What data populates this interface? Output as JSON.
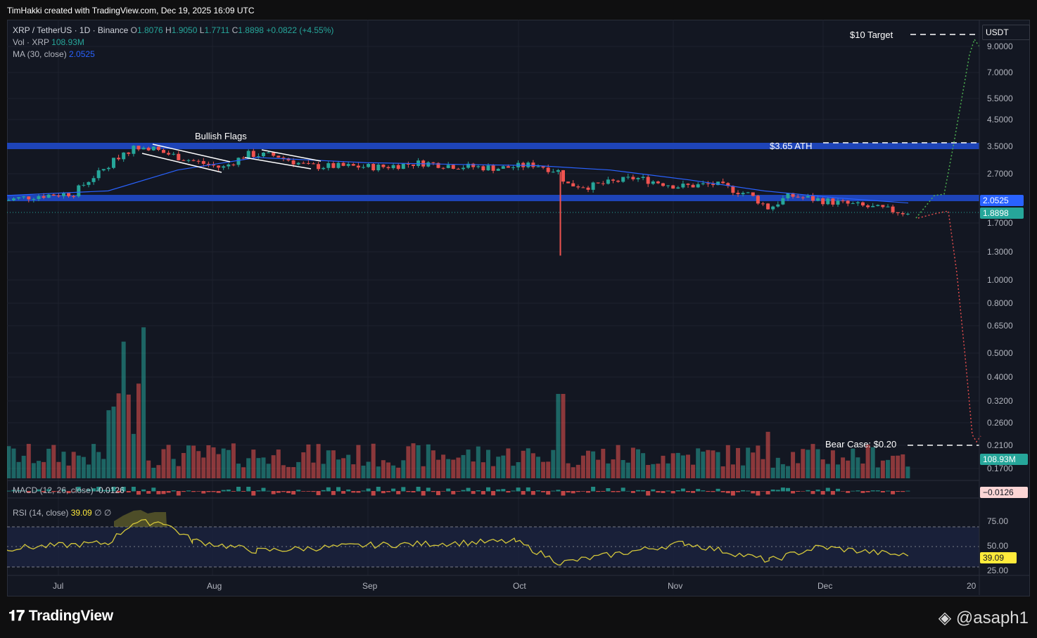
{
  "header": {
    "created_by": "TimHakki created with TradingView.com, Dec 19, 2025 16:09 UTC"
  },
  "legend": {
    "symbol": "XRP / TetherUS · 1D · Binance",
    "o_label": "O",
    "o": "1.8076",
    "h_label": "H",
    "h": "1.9050",
    "l_label": "L",
    "l": "1.7711",
    "c_label": "C",
    "c": "1.8898",
    "change": "+0.0822 (+4.55%)",
    "vol_label": "Vol · XRP",
    "vol": "108.93M",
    "ma_label": "MA (30, close)",
    "ma": "2.0525",
    "macd_label": "MACD (12, 26, close)",
    "macd": "-0.0126",
    "rsi_label": "RSI (14, close)",
    "rsi": "39.09",
    "rsi_extra": "∅  ∅"
  },
  "price_axis": {
    "currency": "USDT",
    "ticks": [
      "9.0000",
      "7.0000",
      "5.5000",
      "4.5000",
      "3.5000",
      "2.7000",
      "1.7000",
      "1.3000",
      "1.0000",
      "0.8000",
      "0.6500",
      "0.5000",
      "0.4000",
      "0.3200",
      "0.2600",
      "0.2100",
      "0.1700"
    ],
    "ma_badge": "2.0525",
    "price_badge": "1.8898",
    "volume_badge": "108.93M",
    "macd_badge": "−0.0126"
  },
  "rsi_axis": {
    "ticks": [
      "75.00",
      "50.00",
      "25.00"
    ],
    "value_badge": "39.09"
  },
  "time_axis": {
    "ticks": [
      "Jul",
      "Aug",
      "Sep",
      "Oct",
      "Nov",
      "Dec",
      "20"
    ]
  },
  "annotations": {
    "target": "$10 Target",
    "ath": "$3.65 ATH",
    "flags": "Bullish Flags",
    "bear": "Bear Case: $0.20"
  },
  "colors": {
    "up": "#26a69a",
    "down": "#ef5350",
    "ma": "#2962ff",
    "zone": "#1b3fa8",
    "rsi": "#d4c73a",
    "grid": "#1e222d",
    "bg": "#131722"
  },
  "footer": {
    "brand": "TradingView",
    "handle": "@asaph1"
  },
  "chart_data": {
    "type": "line",
    "title": "XRP / TetherUS · 1D · Binance",
    "scale": "log",
    "series": [
      {
        "name": "XRP / TetherUS",
        "x": [
          "Jun 20",
          "Jun 27",
          "Jul 4",
          "Jul 11",
          "Jul 14",
          "Jul 18",
          "Jul 22",
          "Jul 28",
          "Aug 3",
          "Aug 8",
          "Aug 14",
          "Aug 20",
          "Aug 27",
          "Sep 4",
          "Sep 12",
          "Sep 20",
          "Sep 28",
          "Oct 5",
          "Oct 10",
          "Oct 11",
          "Oct 16",
          "Oct 25",
          "Nov 3",
          "Nov 10",
          "Nov 17",
          "Nov 21",
          "Nov 25",
          "Dec 2",
          "Dec 9",
          "Dec 15",
          "Dec 18",
          "Dec 19"
        ],
        "values": [
          2.1,
          2.2,
          2.25,
          2.9,
          3.3,
          3.55,
          3.3,
          3.05,
          2.85,
          3.25,
          3.2,
          2.9,
          2.9,
          2.88,
          3.0,
          2.9,
          2.85,
          2.95,
          2.75,
          2.45,
          2.4,
          2.6,
          2.4,
          2.45,
          2.22,
          1.95,
          2.2,
          2.1,
          2.0,
          1.92,
          1.88,
          1.89
        ]
      },
      {
        "name": "MA (30, close)",
        "x": [
          "Jun 20",
          "Jul 11",
          "Jul 25",
          "Aug 10",
          "Sep 1",
          "Sep 20",
          "Oct 5",
          "Oct 20",
          "Nov 5",
          "Nov 20",
          "Dec 5",
          "Dec 19"
        ],
        "values": [
          2.2,
          2.3,
          2.8,
          3.15,
          3.0,
          2.95,
          2.92,
          2.8,
          2.55,
          2.3,
          2.15,
          2.0525
        ]
      },
      {
        "name": "RSI (14, close)",
        "x": [
          "Jun 20",
          "Jul 11",
          "Jul 16",
          "Jul 22",
          "Jul 28",
          "Aug 10",
          "Sep 1",
          "Oct 1",
          "Oct 10",
          "Nov 4",
          "Nov 21",
          "Dec 1",
          "Dec 19"
        ],
        "values": [
          48,
          55,
          80,
          81,
          58,
          45,
          52,
          57,
          30,
          55,
          33,
          50,
          39.09
        ]
      }
    ],
    "volume": [
      {
        "x": "Jul 14",
        "value": 900
      },
      {
        "x": "Jul 18",
        "value": 945
      },
      {
        "x": "Oct 10",
        "value": 780
      },
      {
        "x": "Nov 21",
        "value": 430
      },
      {
        "x": "Dec 19",
        "value": 108.93
      }
    ],
    "zones": [
      {
        "name": "$3.65 ATH",
        "range": [
          3.45,
          3.6
        ]
      },
      {
        "name": "2.0525",
        "range": [
          1.97,
          2.1
        ]
      }
    ],
    "projections": [
      {
        "name": "$10 Target",
        "from": [
          "Dec 19",
          1.89
        ],
        "to": [
          "Dec 30",
          9.5
        ]
      },
      {
        "name": "Bear Case: $0.20",
        "from": [
          "Dec 19",
          1.89
        ],
        "to": [
          "Dec 30",
          0.2
        ]
      }
    ],
    "xlabel": "",
    "ylabel": "",
    "grid": true,
    "legend": "top-left"
  }
}
